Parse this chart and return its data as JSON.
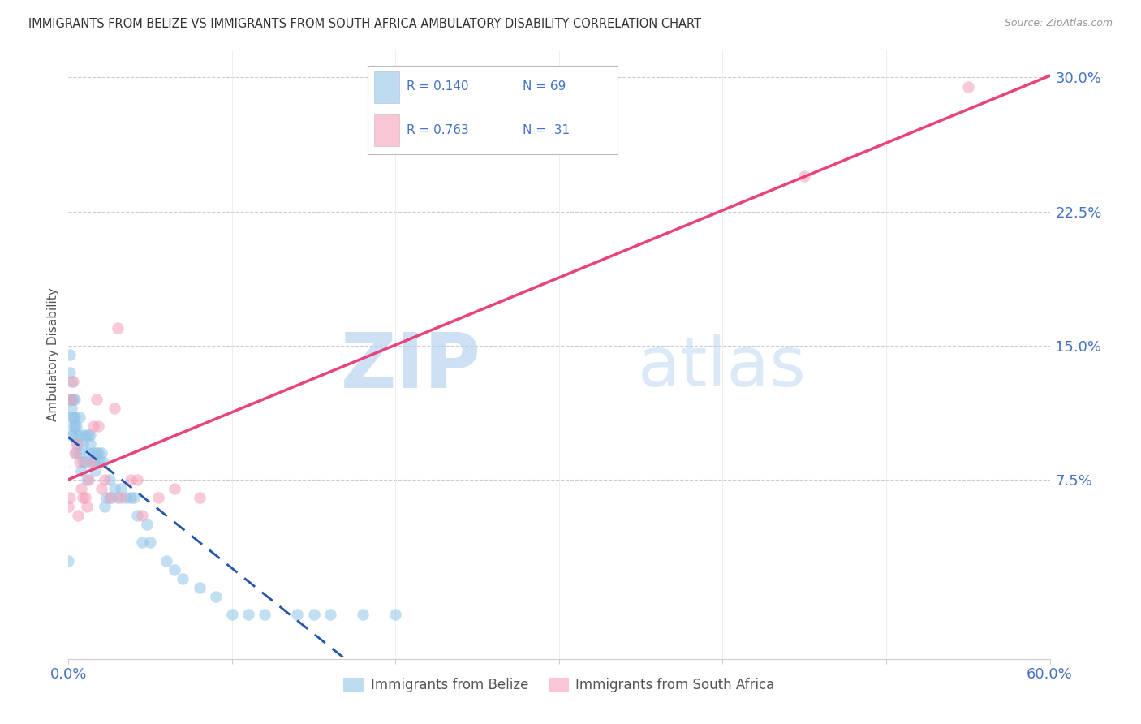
{
  "title": "IMMIGRANTS FROM BELIZE VS IMMIGRANTS FROM SOUTH AFRICA AMBULATORY DISABILITY CORRELATION CHART",
  "source": "Source: ZipAtlas.com",
  "ylabel_label": "Ambulatory Disability",
  "belize_color": "#91c4e8",
  "sa_color": "#f4a0b8",
  "belize_line_color": "#2255aa",
  "sa_line_color": "#e8437a",
  "xlim": [
    0.0,
    0.6
  ],
  "ylim": [
    -0.025,
    0.315
  ],
  "belize_x": [
    0.0,
    0.001,
    0.001,
    0.001,
    0.002,
    0.002,
    0.002,
    0.002,
    0.002,
    0.003,
    0.003,
    0.003,
    0.003,
    0.004,
    0.004,
    0.004,
    0.005,
    0.005,
    0.006,
    0.006,
    0.007,
    0.007,
    0.008,
    0.008,
    0.009,
    0.009,
    0.01,
    0.01,
    0.011,
    0.012,
    0.012,
    0.013,
    0.013,
    0.015,
    0.015,
    0.016,
    0.016,
    0.017,
    0.018,
    0.019,
    0.02,
    0.021,
    0.022,
    0.023,
    0.025,
    0.026,
    0.028,
    0.03,
    0.032,
    0.035,
    0.038,
    0.04,
    0.042,
    0.045,
    0.048,
    0.05,
    0.06,
    0.065,
    0.07,
    0.08,
    0.09,
    0.1,
    0.11,
    0.12,
    0.14,
    0.15,
    0.16,
    0.18,
    0.2
  ],
  "belize_y": [
    0.03,
    0.145,
    0.135,
    0.12,
    0.13,
    0.12,
    0.115,
    0.11,
    0.1,
    0.12,
    0.11,
    0.105,
    0.1,
    0.12,
    0.11,
    0.105,
    0.105,
    0.09,
    0.1,
    0.095,
    0.11,
    0.09,
    0.1,
    0.08,
    0.095,
    0.085,
    0.1,
    0.085,
    0.075,
    0.09,
    0.1,
    0.095,
    0.1,
    0.09,
    0.085,
    0.085,
    0.08,
    0.09,
    0.09,
    0.085,
    0.09,
    0.085,
    0.06,
    0.065,
    0.075,
    0.065,
    0.07,
    0.065,
    0.07,
    0.065,
    0.065,
    0.065,
    0.055,
    0.04,
    0.05,
    0.04,
    0.03,
    0.025,
    0.02,
    0.015,
    0.01,
    0.0,
    0.0,
    0.0,
    0.0,
    0.0,
    0.0,
    0.0,
    0.0
  ],
  "sa_x": [
    0.0,
    0.001,
    0.002,
    0.003,
    0.004,
    0.005,
    0.006,
    0.007,
    0.008,
    0.009,
    0.01,
    0.011,
    0.012,
    0.014,
    0.015,
    0.017,
    0.018,
    0.02,
    0.022,
    0.025,
    0.028,
    0.03,
    0.032,
    0.038,
    0.042,
    0.045,
    0.055,
    0.065,
    0.08,
    0.45,
    0.55
  ],
  "sa_y": [
    0.06,
    0.065,
    0.12,
    0.13,
    0.09,
    0.095,
    0.055,
    0.085,
    0.07,
    0.065,
    0.065,
    0.06,
    0.075,
    0.085,
    0.105,
    0.12,
    0.105,
    0.07,
    0.075,
    0.065,
    0.115,
    0.16,
    0.065,
    0.075,
    0.075,
    0.055,
    0.065,
    0.07,
    0.065,
    0.245,
    0.295
  ],
  "ytick_vals": [
    0.075,
    0.15,
    0.225,
    0.3
  ],
  "ytick_labels": [
    "7.5%",
    "15.0%",
    "22.5%",
    "30.0%"
  ],
  "xtick_vals": [
    0.0,
    0.1,
    0.2,
    0.3,
    0.4,
    0.5,
    0.6
  ],
  "xtick_labels": [
    "0.0%",
    "",
    "",
    "",
    "",
    "",
    "60.0%"
  ],
  "legend_text_color": "#4472c4",
  "watermark_zip_color": "#b8d4f0",
  "watermark_atlas_color": "#b8d4f0"
}
